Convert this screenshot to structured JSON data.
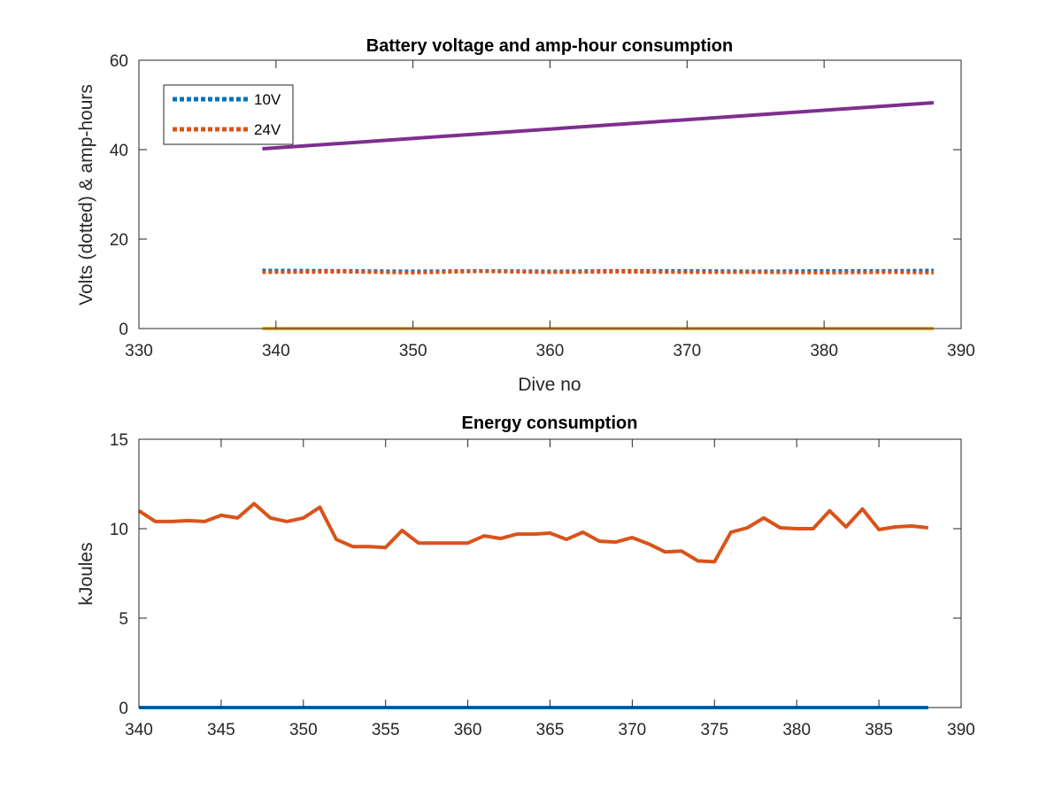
{
  "chart_data": [
    {
      "type": "line",
      "title": "Battery voltage and amp-hour consumption",
      "xlabel": "Dive no",
      "ylabel": "Volts (dotted) & amp-hours",
      "xlim": [
        330,
        390
      ],
      "ylim": [
        0,
        60
      ],
      "xticks": [
        330,
        340,
        350,
        360,
        370,
        380,
        390
      ],
      "yticks": [
        0,
        20,
        40,
        60
      ],
      "grid": false,
      "legend_position": "top-left",
      "series": [
        {
          "name": "10V",
          "style": "dotted",
          "color": "#0072BD",
          "x": [
            339,
            345,
            350,
            355,
            360,
            365,
            370,
            375,
            380,
            385,
            388
          ],
          "y": [
            13.0,
            12.9,
            12.8,
            12.9,
            12.8,
            12.9,
            12.9,
            12.8,
            12.9,
            12.9,
            13.0
          ]
        },
        {
          "name": "24V",
          "style": "dotted",
          "color": "#D95319",
          "x": [
            339,
            345,
            350,
            355,
            360,
            365,
            370,
            375,
            380,
            385,
            388
          ],
          "y": [
            12.6,
            12.7,
            12.5,
            12.8,
            12.6,
            12.7,
            12.6,
            12.6,
            12.5,
            12.6,
            12.5
          ]
        },
        {
          "style": "solid",
          "color": "#7E2F8E",
          "x": [
            339,
            388
          ],
          "y": [
            40.2,
            50.5
          ]
        },
        {
          "style": "solid",
          "color": "#EDB120",
          "x": [
            339,
            388
          ],
          "y": [
            0,
            0
          ]
        }
      ]
    },
    {
      "type": "line",
      "title": "Energy consumption",
      "xlabel": "",
      "ylabel": "kJoules",
      "xlim": [
        340,
        390
      ],
      "ylim": [
        0,
        15
      ],
      "xticks": [
        340,
        345,
        350,
        355,
        360,
        365,
        370,
        375,
        380,
        385,
        390
      ],
      "yticks": [
        0,
        5,
        10,
        15
      ],
      "grid": false,
      "series": [
        {
          "style": "solid",
          "color": "#0072BD",
          "x": [
            340,
            388
          ],
          "y": [
            0,
            0
          ]
        },
        {
          "style": "solid",
          "color": "#D95319",
          "x": [
            340,
            341,
            342,
            343,
            344,
            345,
            346,
            347,
            348,
            349,
            350,
            351,
            352,
            353,
            354,
            355,
            356,
            357,
            358,
            359,
            360,
            361,
            362,
            363,
            364,
            365,
            366,
            367,
            368,
            369,
            370,
            371,
            372,
            373,
            374,
            375,
            376,
            377,
            378,
            379,
            380,
            381,
            382,
            383,
            384,
            385,
            386,
            387,
            388
          ],
          "y": [
            11.0,
            10.4,
            10.4,
            10.45,
            10.4,
            10.75,
            10.6,
            11.4,
            10.6,
            10.4,
            10.6,
            11.2,
            9.4,
            9.0,
            9.0,
            8.95,
            9.9,
            9.2,
            9.2,
            9.2,
            9.2,
            9.6,
            9.45,
            9.7,
            9.7,
            9.75,
            9.4,
            9.8,
            9.3,
            9.25,
            9.5,
            9.15,
            8.7,
            8.75,
            8.2,
            8.15,
            9.8,
            10.05,
            10.6,
            10.05,
            10.0,
            10.0,
            11.0,
            10.1,
            11.1,
            9.95,
            10.1,
            10.15,
            10.05
          ]
        }
      ]
    }
  ]
}
